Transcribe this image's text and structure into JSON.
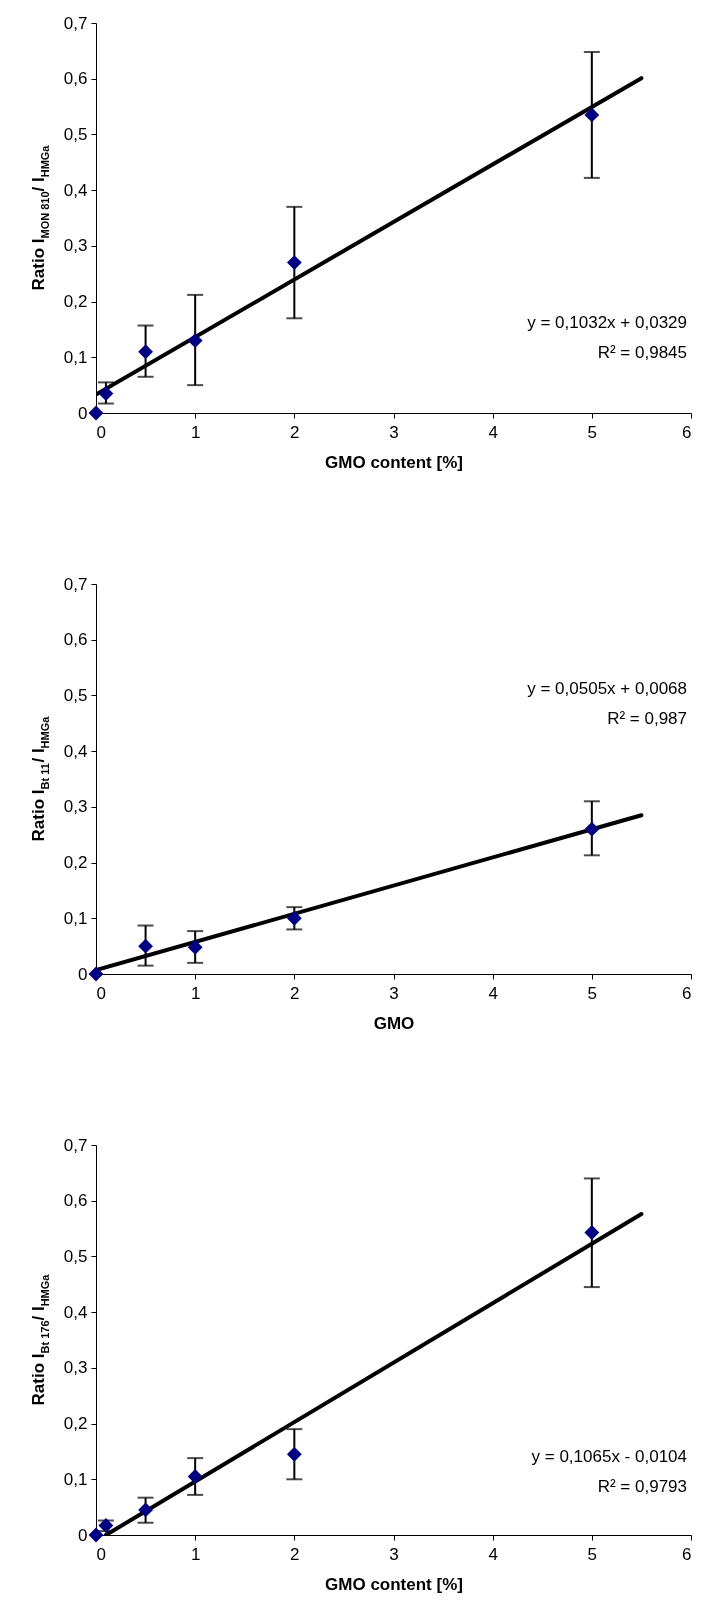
{
  "chart_data": [
    {
      "type": "scatter",
      "xlabel": "GMO content [%]",
      "ylabel": "Ratio I$_{MON 810}$/ I$_{HMGa}$",
      "xlim": [
        0,
        6
      ],
      "ylim": [
        0,
        0.7
      ],
      "xticks": [
        0,
        1,
        2,
        3,
        4,
        5,
        6
      ],
      "yticks": [
        0,
        {
          "value": 0.1,
          "label": "0,1"
        },
        {
          "value": 0.2,
          "label": "0,2"
        },
        {
          "value": 0.3,
          "label": "0,3"
        },
        {
          "value": 0.4,
          "label": "0,4"
        },
        {
          "value": 0.5,
          "label": "0,5"
        },
        {
          "value": 0.6,
          "label": "0,6"
        },
        {
          "value": 0.7,
          "label": "0,7"
        }
      ],
      "grid": false,
      "legend": false,
      "annotations": [
        "y = 0,1032x + 0,0329",
        "R² = 0,9845"
      ],
      "series": [
        {
          "marker": "diamond",
          "color": "#000080",
          "x": [
            0,
            0.1,
            0.5,
            1,
            2,
            5
          ],
          "values": [
            0,
            0.035,
            0.11,
            0.13,
            0.27,
            0.535
          ],
          "errors": [
            null,
            [
              0.017,
              0.055
            ],
            [
              0.065,
              0.157
            ],
            [
              0.05,
              0.212
            ],
            [
              0.17,
              0.37
            ],
            [
              0.422,
              0.648
            ]
          ]
        },
        {
          "type": "line",
          "color": "#000000",
          "x": [
            0,
            5.5
          ],
          "values": [
            0.033,
            0.601
          ]
        }
      ]
    },
    {
      "type": "scatter",
      "xlabel": "GMO",
      "ylabel": "Ratio I$_{Bt 11}$/ I$_{HMGa}$",
      "xlim": [
        0,
        6
      ],
      "ylim": [
        0,
        0.7
      ],
      "xticks": [
        0,
        1,
        2,
        3,
        4,
        5,
        6
      ],
      "yticks": [
        0,
        {
          "value": 0.1,
          "label": "0,1"
        },
        {
          "value": 0.2,
          "label": "0,2"
        },
        {
          "value": 0.3,
          "label": "0,3"
        },
        {
          "value": 0.4,
          "label": "0,4"
        },
        {
          "value": 0.5,
          "label": "0,5"
        },
        {
          "value": 0.6,
          "label": "0,6"
        },
        {
          "value": 0.7,
          "label": "0,7"
        }
      ],
      "grid": false,
      "legend": false,
      "annotations": [
        "y = 0,0505x + 0,0068",
        "R² = 0,987"
      ],
      "series": [
        {
          "marker": "diamond",
          "color": "#000080",
          "x": [
            0,
            0.5,
            1,
            2,
            5
          ],
          "values": [
            0,
            0.05,
            0.048,
            0.1,
            0.26
          ],
          "errors": [
            null,
            [
              0.015,
              0.087
            ],
            [
              0.02,
              0.077
            ],
            [
              0.08,
              0.12
            ],
            [
              0.213,
              0.31
            ]
          ]
        },
        {
          "type": "line",
          "color": "#000000",
          "x": [
            0,
            5.5
          ],
          "values": [
            0.007,
            0.285
          ]
        }
      ]
    },
    {
      "type": "scatter",
      "xlabel": "GMO content [%]",
      "ylabel": "Ratio I$_{Bt 176}$/ I$_{HMGa}$",
      "xlim": [
        0,
        6
      ],
      "ylim": [
        0,
        0.7
      ],
      "xticks": [
        0,
        1,
        2,
        3,
        4,
        5,
        6
      ],
      "yticks": [
        0,
        {
          "value": 0.1,
          "label": "0,1"
        },
        {
          "value": 0.2,
          "label": "0,2"
        },
        {
          "value": 0.3,
          "label": "0,3"
        },
        {
          "value": 0.4,
          "label": "0,4"
        },
        {
          "value": 0.5,
          "label": "0,5"
        },
        {
          "value": 0.6,
          "label": "0,6"
        },
        {
          "value": 0.7,
          "label": "0,7"
        }
      ],
      "grid": false,
      "legend": false,
      "annotations": [
        "y = 0,1065x - 0,0104",
        "R² = 0,9793"
      ],
      "series": [
        {
          "marker": "diamond",
          "color": "#000080",
          "x": [
            0,
            0.1,
            0.5,
            1,
            2,
            5
          ],
          "values": [
            0,
            0.017,
            0.045,
            0.105,
            0.145,
            0.543
          ],
          "errors": [
            null,
            [
              0.007,
              0.026
            ],
            [
              0.022,
              0.067
            ],
            [
              0.072,
              0.138
            ],
            [
              0.1,
              0.19
            ],
            [
              0.445,
              0.64
            ]
          ]
        },
        {
          "type": "line",
          "color": "#000000",
          "x": [
            0.1,
            5.5
          ],
          "values": [
            0,
            0.576
          ]
        }
      ]
    }
  ]
}
